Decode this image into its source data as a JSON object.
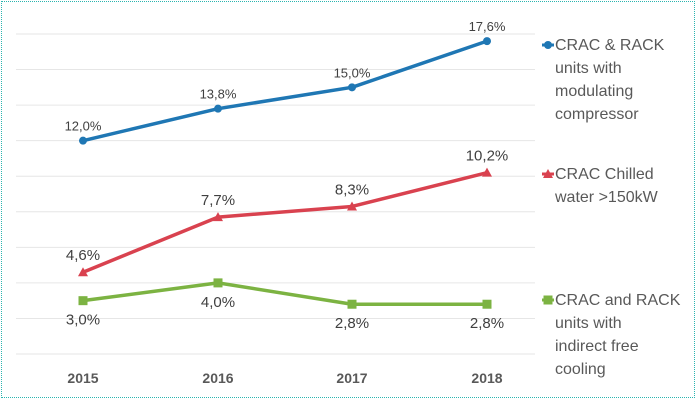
{
  "chart_data": {
    "type": "line",
    "title": "",
    "xlabel": "",
    "ylabel": "",
    "categories": [
      "2015",
      "2016",
      "2017",
      "2018"
    ],
    "ylim": [
      0,
      18
    ],
    "y_gridline_step": 2,
    "grid": true,
    "y_axis_visible": false,
    "legend_position": "right",
    "series": [
      {
        "name": "CRAC & RACK units with modulating compressor",
        "legend_lines": [
          "CRAC & RACK",
          "units with",
          "modulating",
          "compressor"
        ],
        "color": "#1f77b4",
        "marker": "circle",
        "values": [
          12.0,
          13.8,
          15.0,
          17.6
        ],
        "labels": [
          "12,0%",
          "13,8%",
          "15,0%",
          "17,6%"
        ],
        "label_position": "above"
      },
      {
        "name": "CRAC Chilled water >150kW",
        "legend_lines": [
          "CRAC Chilled",
          "water >150kW"
        ],
        "color": "#d9424f",
        "marker": "triangle",
        "values": [
          4.6,
          7.7,
          8.3,
          10.2
        ],
        "labels": [
          "4,6%",
          "7,7%",
          "8,3%",
          "10,2%"
        ],
        "label_position": "above"
      },
      {
        "name": "CRAC and RACK units with indirect free cooling",
        "legend_lines": [
          "CRAC and RACK",
          "units with",
          "indirect free",
          "cooling"
        ],
        "color": "#7cb342",
        "marker": "square",
        "values": [
          3.0,
          4.0,
          2.8,
          2.8
        ],
        "labels": [
          "3,0%",
          "4,0%",
          "2,8%",
          "2,8%"
        ],
        "label_position": "below"
      }
    ]
  }
}
